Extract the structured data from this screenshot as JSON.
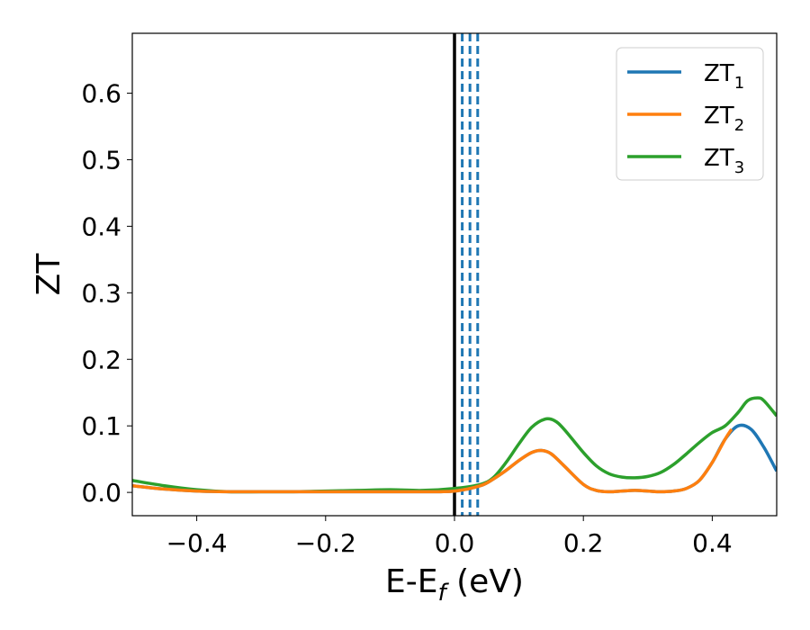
{
  "chart_data": {
    "type": "line",
    "title": "",
    "xlabel": "E-E",
    "xlabel_sub": "f",
    "xlabel_unit": " (eV)",
    "ylabel": "ZT",
    "xlim": [
      -0.5,
      0.5
    ],
    "ylim": [
      -0.035,
      0.69
    ],
    "xticks": [
      -0.4,
      -0.2,
      0.0,
      0.2,
      0.4
    ],
    "xtick_labels": [
      "−0.4",
      "−0.2",
      "0.0",
      "0.2",
      "0.4"
    ],
    "yticks": [
      0.0,
      0.1,
      0.2,
      0.3,
      0.4,
      0.5,
      0.6
    ],
    "ytick_labels": [
      "0.0",
      "0.1",
      "0.2",
      "0.3",
      "0.4",
      "0.5",
      "0.6"
    ],
    "grid": false,
    "legend_position": "top-right",
    "vlines": [
      {
        "x": 0.0,
        "color": "#000000",
        "style": "solid"
      },
      {
        "x": 0.012,
        "color": "#1f77b4",
        "style": "dashed"
      },
      {
        "x": 0.024,
        "color": "#1f77b4",
        "style": "dashed"
      },
      {
        "x": 0.036,
        "color": "#1f77b4",
        "style": "dashed"
      }
    ],
    "series": [
      {
        "name": "ZT",
        "name_sub": "1",
        "color": "#1f77b4",
        "x": [
          -0.5,
          -0.45,
          -0.4,
          -0.35,
          -0.3,
          -0.25,
          -0.2,
          -0.15,
          -0.1,
          -0.05,
          0.0,
          0.04,
          0.06,
          0.08,
          0.1,
          0.12,
          0.135,
          0.15,
          0.17,
          0.2,
          0.22,
          0.24,
          0.26,
          0.28,
          0.3,
          0.32,
          0.34,
          0.36,
          0.38,
          0.4,
          0.42,
          0.44,
          0.46,
          0.48,
          0.5
        ],
        "y": [
          0.01,
          0.005,
          0.002,
          0.001,
          0.001,
          0.001,
          0.001,
          0.001,
          0.001,
          0.001,
          0.002,
          0.01,
          0.02,
          0.033,
          0.048,
          0.06,
          0.063,
          0.058,
          0.04,
          0.012,
          0.003,
          0.001,
          0.002,
          0.003,
          0.002,
          0.001,
          0.002,
          0.006,
          0.018,
          0.045,
          0.08,
          0.1,
          0.095,
          0.068,
          0.032
        ]
      },
      {
        "name": "ZT",
        "name_sub": "2",
        "color": "#ff7f0e",
        "x": [
          -0.5,
          -0.45,
          -0.4,
          -0.35,
          -0.3,
          -0.25,
          -0.2,
          -0.15,
          -0.1,
          -0.05,
          0.0,
          0.04,
          0.06,
          0.08,
          0.1,
          0.12,
          0.135,
          0.15,
          0.17,
          0.2,
          0.22,
          0.24,
          0.26,
          0.28,
          0.3,
          0.32,
          0.34,
          0.36,
          0.38,
          0.4,
          0.42,
          0.43
        ],
        "y": [
          0.01,
          0.005,
          0.002,
          0.001,
          0.001,
          0.001,
          0.001,
          0.001,
          0.001,
          0.001,
          0.002,
          0.01,
          0.02,
          0.033,
          0.048,
          0.06,
          0.063,
          0.058,
          0.04,
          0.012,
          0.003,
          0.001,
          0.002,
          0.003,
          0.002,
          0.001,
          0.002,
          0.006,
          0.018,
          0.045,
          0.08,
          0.095
        ]
      },
      {
        "name": "ZT",
        "name_sub": "3",
        "color": "#2ca02c",
        "x": [
          -0.5,
          -0.45,
          -0.4,
          -0.35,
          -0.3,
          -0.25,
          -0.2,
          -0.15,
          -0.1,
          -0.05,
          0.0,
          0.04,
          0.06,
          0.08,
          0.1,
          0.12,
          0.14,
          0.155,
          0.17,
          0.2,
          0.22,
          0.24,
          0.26,
          0.28,
          0.3,
          0.32,
          0.34,
          0.36,
          0.38,
          0.4,
          0.42,
          0.44,
          0.455,
          0.47,
          0.48,
          0.5
        ],
        "y": [
          0.018,
          0.01,
          0.004,
          0.001,
          0.001,
          0.001,
          0.002,
          0.003,
          0.004,
          0.003,
          0.006,
          0.012,
          0.022,
          0.045,
          0.073,
          0.098,
          0.11,
          0.108,
          0.095,
          0.06,
          0.04,
          0.028,
          0.023,
          0.022,
          0.024,
          0.03,
          0.042,
          0.058,
          0.075,
          0.09,
          0.1,
          0.12,
          0.138,
          0.142,
          0.138,
          0.115
        ]
      }
    ]
  }
}
